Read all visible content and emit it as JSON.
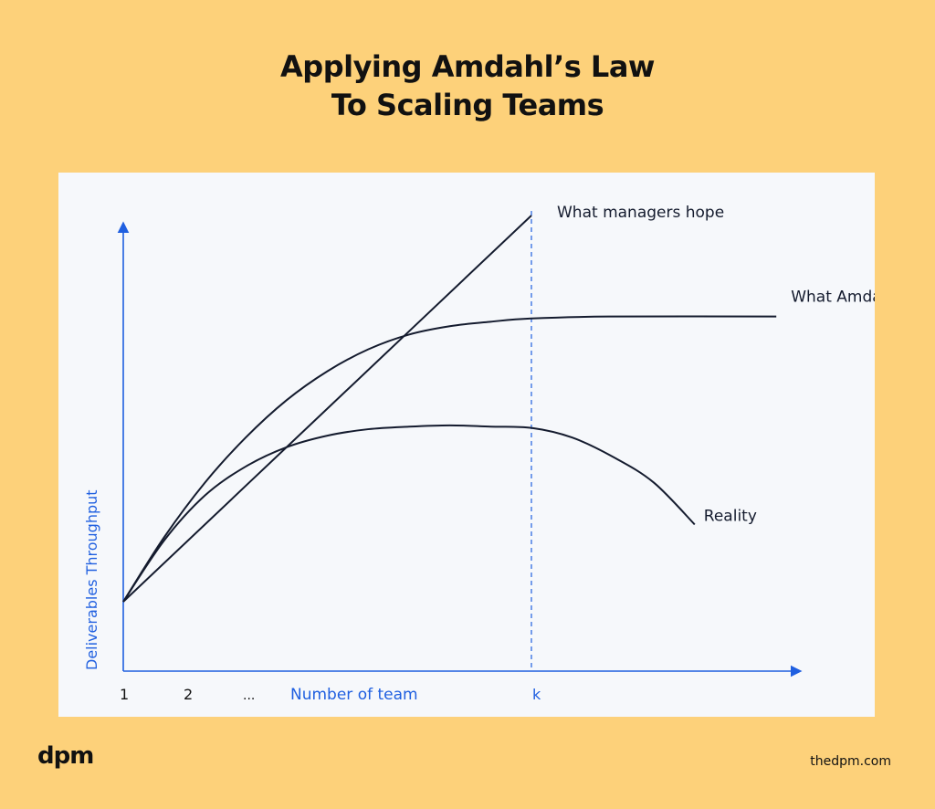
{
  "header": {
    "title_line1": "Applying Amdahl’s Law",
    "title_line2": "To Scaling Teams"
  },
  "brand": {
    "logo": "dpm",
    "site": "thedpm.com"
  },
  "colors": {
    "background": "#FDD17A",
    "card": "#F6F8FB",
    "axis": "#1F5FE0",
    "line": "#141B2E"
  },
  "chart_data": {
    "type": "line",
    "xlabel": "Number of team",
    "ylabel": "Deliverables Throughput",
    "x_ticks": [
      "1",
      "2",
      "...",
      "k"
    ],
    "grid": false,
    "marker_x_label": "k",
    "series": [
      {
        "name": "What managers hope",
        "points": [
          [
            0,
            0
          ],
          [
            0.5,
            0.3
          ],
          [
            1,
            0.6
          ]
        ]
      },
      {
        "name": "What Amdahl says",
        "points": [
          [
            0,
            0
          ],
          [
            0.1,
            0.1
          ],
          [
            0.2,
            0.185
          ],
          [
            0.3,
            0.255
          ],
          [
            0.4,
            0.313
          ],
          [
            0.5,
            0.358
          ],
          [
            0.6,
            0.392
          ],
          [
            0.7,
            0.415
          ],
          [
            0.8,
            0.428
          ],
          [
            0.9,
            0.435
          ],
          [
            1.0,
            0.44
          ],
          [
            1.19,
            0.443
          ],
          [
            1.6,
            0.443
          ]
        ]
      },
      {
        "name": "Reality",
        "points": [
          [
            0,
            0
          ],
          [
            0.1,
            0.095
          ],
          [
            0.2,
            0.165
          ],
          [
            0.3,
            0.21
          ],
          [
            0.4,
            0.24
          ],
          [
            0.5,
            0.258
          ],
          [
            0.6,
            0.268
          ],
          [
            0.7,
            0.272
          ],
          [
            0.8,
            0.274
          ],
          [
            0.9,
            0.272
          ],
          [
            1.0,
            0.27
          ],
          [
            1.1,
            0.255
          ],
          [
            1.2,
            0.225
          ],
          [
            1.3,
            0.185
          ],
          [
            1.4,
            0.12
          ]
        ]
      }
    ]
  }
}
